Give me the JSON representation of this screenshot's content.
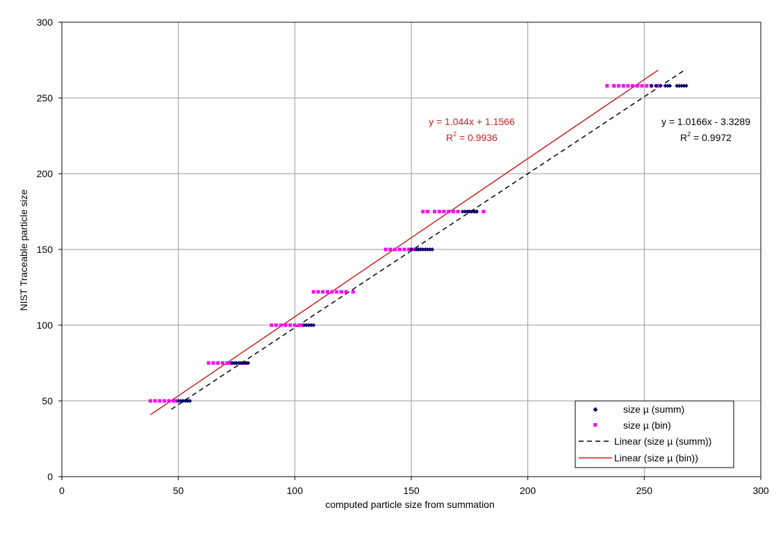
{
  "chart_data": {
    "type": "scatter",
    "title": "",
    "xlabel": "computed particle size from summation",
    "ylabel": "NIST Traceable particle size",
    "xlim": [
      0,
      300
    ],
    "ylim": [
      0,
      300
    ],
    "x_ticks": [
      0,
      50,
      100,
      150,
      200,
      250,
      300
    ],
    "y_ticks": [
      0,
      50,
      100,
      150,
      200,
      250,
      300
    ],
    "grid": true,
    "legend_position": "bottom-right",
    "series": [
      {
        "name": "size µ (summ)",
        "kind": "points",
        "marker": "diamond",
        "color": "#000066",
        "points": [
          [
            50,
            50
          ],
          [
            51,
            50
          ],
          [
            52,
            50
          ],
          [
            53,
            50
          ],
          [
            54,
            50
          ],
          [
            55,
            50
          ],
          [
            73,
            75
          ],
          [
            74,
            75
          ],
          [
            75,
            75
          ],
          [
            76,
            75
          ],
          [
            77,
            75
          ],
          [
            78,
            75
          ],
          [
            79,
            75
          ],
          [
            80,
            75
          ],
          [
            104,
            100
          ],
          [
            105,
            100
          ],
          [
            106,
            100
          ],
          [
            107,
            100
          ],
          [
            108,
            100
          ],
          [
            150,
            150
          ],
          [
            152,
            150
          ],
          [
            153,
            150
          ],
          [
            154,
            150
          ],
          [
            155,
            150
          ],
          [
            156,
            150
          ],
          [
            157,
            150
          ],
          [
            158,
            150
          ],
          [
            159,
            150
          ],
          [
            172,
            175
          ],
          [
            173,
            175
          ],
          [
            174,
            175
          ],
          [
            175,
            175
          ],
          [
            176,
            175
          ],
          [
            177,
            175
          ],
          [
            178,
            175
          ],
          [
            253,
            258
          ],
          [
            255,
            258
          ],
          [
            257,
            258
          ],
          [
            259,
            258
          ],
          [
            260,
            258
          ],
          [
            261,
            258
          ],
          [
            264,
            258
          ],
          [
            265,
            258
          ],
          [
            266,
            258
          ],
          [
            267,
            258
          ],
          [
            268,
            258
          ]
        ]
      },
      {
        "name": "size µ (bin)",
        "kind": "points",
        "marker": "square",
        "color": "#ff00ff",
        "points": [
          [
            38,
            50
          ],
          [
            40,
            50
          ],
          [
            42,
            50
          ],
          [
            44,
            50
          ],
          [
            46,
            50
          ],
          [
            48,
            50
          ],
          [
            49,
            50
          ],
          [
            63,
            75
          ],
          [
            65,
            75
          ],
          [
            67,
            75
          ],
          [
            69,
            75
          ],
          [
            71,
            75
          ],
          [
            72,
            75
          ],
          [
            74,
            75
          ],
          [
            77,
            75
          ],
          [
            79,
            75
          ],
          [
            90,
            100
          ],
          [
            92,
            100
          ],
          [
            94,
            100
          ],
          [
            96,
            100
          ],
          [
            98,
            100
          ],
          [
            100,
            100
          ],
          [
            102,
            100
          ],
          [
            103,
            100
          ],
          [
            108,
            122
          ],
          [
            110,
            122
          ],
          [
            112,
            122
          ],
          [
            114,
            122
          ],
          [
            116,
            122
          ],
          [
            118,
            122
          ],
          [
            120,
            122
          ],
          [
            122,
            122
          ],
          [
            125,
            122
          ],
          [
            139,
            150
          ],
          [
            141,
            150
          ],
          [
            143,
            150
          ],
          [
            145,
            150
          ],
          [
            147,
            150
          ],
          [
            149,
            150
          ],
          [
            151,
            150
          ],
          [
            153,
            150
          ],
          [
            155,
            175
          ],
          [
            157,
            175
          ],
          [
            160,
            175
          ],
          [
            162,
            175
          ],
          [
            164,
            175
          ],
          [
            166,
            175
          ],
          [
            168,
            175
          ],
          [
            170,
            175
          ],
          [
            175,
            175
          ],
          [
            178,
            175
          ],
          [
            181,
            175
          ],
          [
            234,
            258
          ],
          [
            237,
            258
          ],
          [
            239,
            258
          ],
          [
            241,
            258
          ],
          [
            243,
            258
          ],
          [
            245,
            258
          ],
          [
            247,
            258
          ],
          [
            249,
            258
          ],
          [
            251,
            258
          ],
          [
            253,
            258
          ],
          [
            256,
            258
          ]
        ]
      },
      {
        "name": "Linear (size µ (summ))",
        "kind": "trendline",
        "style": "dashed",
        "color": "#000000",
        "slope": 1.0166,
        "intercept": -3.3289,
        "x_range": [
          47,
          268
        ],
        "equation": "y = 1.0166x - 3.3289",
        "r2_label": "R",
        "r2_sup": "2",
        "r2_value": " = 0.9972"
      },
      {
        "name": "Linear (size µ (bin))",
        "kind": "trendline",
        "style": "solid",
        "color": "#cc2222",
        "slope": 1.044,
        "intercept": 1.1566,
        "x_range": [
          38,
          256
        ],
        "equation": "y = 1.044x + 1.1566",
        "r2_label": "R",
        "r2_sup": "2",
        "r2_value": " = 0.9936"
      }
    ]
  }
}
